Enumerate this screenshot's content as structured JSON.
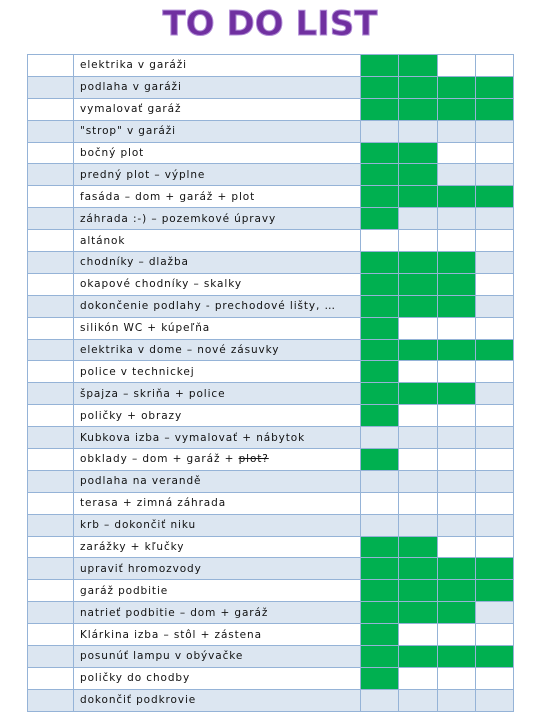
{
  "header": {
    "title": "TO DO LIST"
  },
  "table": {
    "rows": [
      {
        "text": "elektrika v garáži",
        "done": [
          true,
          true,
          false,
          false
        ]
      },
      {
        "text": "podlaha  v garáži",
        "done": [
          true,
          true,
          true,
          true
        ]
      },
      {
        "text": "vymalovať garáž",
        "done": [
          true,
          true,
          true,
          true
        ]
      },
      {
        "text": "\"strop\" v garáži",
        "done": [
          false,
          false,
          false,
          false
        ]
      },
      {
        "text": "bočný plot",
        "done": [
          true,
          true,
          false,
          false
        ]
      },
      {
        "text": "predný plot – výplne",
        "done": [
          true,
          true,
          false,
          false
        ]
      },
      {
        "text": "fasáda – dom + garáž + plot",
        "done": [
          true,
          true,
          true,
          true
        ]
      },
      {
        "text": "záhrada :-) – pozemkové úpravy",
        "done": [
          true,
          false,
          false,
          false
        ]
      },
      {
        "text": "altánok",
        "done": [
          false,
          false,
          false,
          false
        ]
      },
      {
        "text": "chodníky – dlažba",
        "done": [
          true,
          true,
          true,
          false
        ]
      },
      {
        "text": "okapové chodníky – skalky",
        "done": [
          true,
          true,
          true,
          false
        ]
      },
      {
        "text": "dokončenie podlahy - prechodové lišty, …",
        "done": [
          true,
          true,
          true,
          false
        ]
      },
      {
        "text": "silikón WC + kúpeľňa",
        "done": [
          true,
          false,
          false,
          false
        ]
      },
      {
        "text": "elektrika v dome – nové zásuvky",
        "done": [
          true,
          true,
          true,
          true
        ]
      },
      {
        "text": "police v technickej",
        "done": [
          true,
          false,
          false,
          false
        ]
      },
      {
        "text": "špajza – skriňa + police",
        "done": [
          true,
          true,
          true,
          false
        ]
      },
      {
        "text": "poličky + obrazy",
        "done": [
          true,
          false,
          false,
          false
        ]
      },
      {
        "text": "Kubkova izba – vymalovať + nábytok",
        "done": [
          false,
          false,
          false,
          false
        ]
      },
      {
        "text": "obklady – dom + garáž + ",
        "struck": "plot?",
        "done": [
          true,
          false,
          false,
          false
        ]
      },
      {
        "text": "podlaha  na verandě",
        "done": [
          false,
          false,
          false,
          false
        ]
      },
      {
        "text": "terasa + zimná záhrada",
        "done": [
          false,
          false,
          false,
          false
        ]
      },
      {
        "text": "krb – dokončiť  niku",
        "done": [
          false,
          false,
          false,
          false
        ]
      },
      {
        "text": "zarážky + kľučky",
        "done": [
          true,
          true,
          false,
          false
        ]
      },
      {
        "text": "upraviť hromozvody",
        "done": [
          true,
          true,
          true,
          true
        ]
      },
      {
        "text": "garáž podbitie",
        "done": [
          true,
          true,
          true,
          true
        ]
      },
      {
        "text": "natrieť podbitie  – dom + garáž",
        "done": [
          true,
          true,
          true,
          false
        ]
      },
      {
        "text": "Klárkina izba – stôl + zástena",
        "done": [
          true,
          false,
          false,
          false
        ]
      },
      {
        "text": "posunúť lampu v obývačke",
        "done": [
          true,
          true,
          true,
          true
        ]
      },
      {
        "text": "poličky do chodby",
        "done": [
          true,
          false,
          false,
          false
        ]
      },
      {
        "text": "dokončiť podkrovie",
        "done": [
          false,
          false,
          false,
          false
        ]
      }
    ]
  }
}
